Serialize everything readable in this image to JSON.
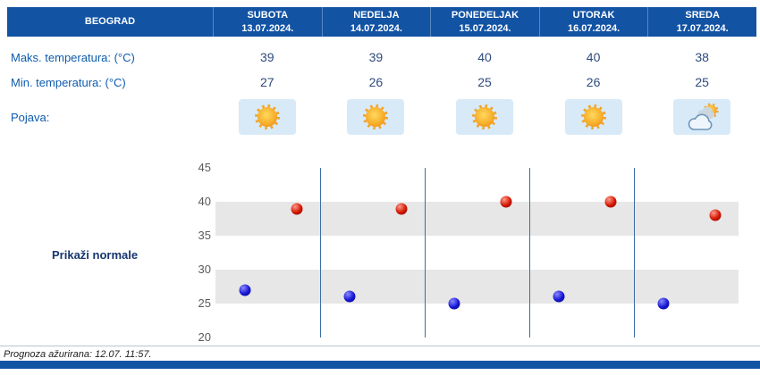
{
  "colors": {
    "header_bg": "#1253a4",
    "label_blue": "#0d5cad",
    "value_navy": "#2e4a7d",
    "band_gray": "#e7e7e7",
    "separator_blue": "#3a6ea5",
    "max_dot_red": "#c41200",
    "min_dot_blue": "#1414c8",
    "icon_bg": "#d8eaf7"
  },
  "header": {
    "location": "BEOGRAD",
    "days": [
      {
        "name": "SUBOTA",
        "date": "13.07.2024."
      },
      {
        "name": "NEDELJA",
        "date": "14.07.2024."
      },
      {
        "name": "PONEDELJAK",
        "date": "15.07.2024."
      },
      {
        "name": "UTORAK",
        "date": "16.07.2024."
      },
      {
        "name": "SREDA",
        "date": "17.07.2024."
      }
    ]
  },
  "table": {
    "max_label": "Maks. temperatura: (°C)",
    "max_values": [
      "39",
      "39",
      "40",
      "40",
      "38"
    ],
    "min_label": "Min. temperatura: (°C)",
    "min_values": [
      "27",
      "26",
      "25",
      "26",
      "25"
    ],
    "phenomena_label": "Pojava:",
    "phenomena_icons": [
      "sunny",
      "sunny",
      "sunny",
      "sunny",
      "sun-behind-clouds"
    ]
  },
  "chart": {
    "normals_label": "Prikaži normale",
    "chart_data": {
      "type": "scatter",
      "categories": [
        "SUBOTA 13.07.2024.",
        "NEDELJA 14.07.2024.",
        "PONEDELJAK 15.07.2024.",
        "UTORAK 16.07.2024.",
        "SREDA 17.07.2024."
      ],
      "series": [
        {
          "name": "Maks. temperatura (°C)",
          "color": "#c41200",
          "values": [
            39,
            39,
            40,
            40,
            38
          ]
        },
        {
          "name": "Min. temperatura (°C)",
          "color": "#1414c8",
          "values": [
            27,
            26,
            25,
            26,
            25
          ]
        }
      ],
      "ylim": [
        20,
        45
      ],
      "yticks": [
        20,
        25,
        30,
        35,
        40,
        45
      ],
      "grid": "horizontal-bands",
      "legend": "none"
    }
  },
  "footer": {
    "updated_text": "Prognoza ažurirana:  12.07. 11:57."
  }
}
